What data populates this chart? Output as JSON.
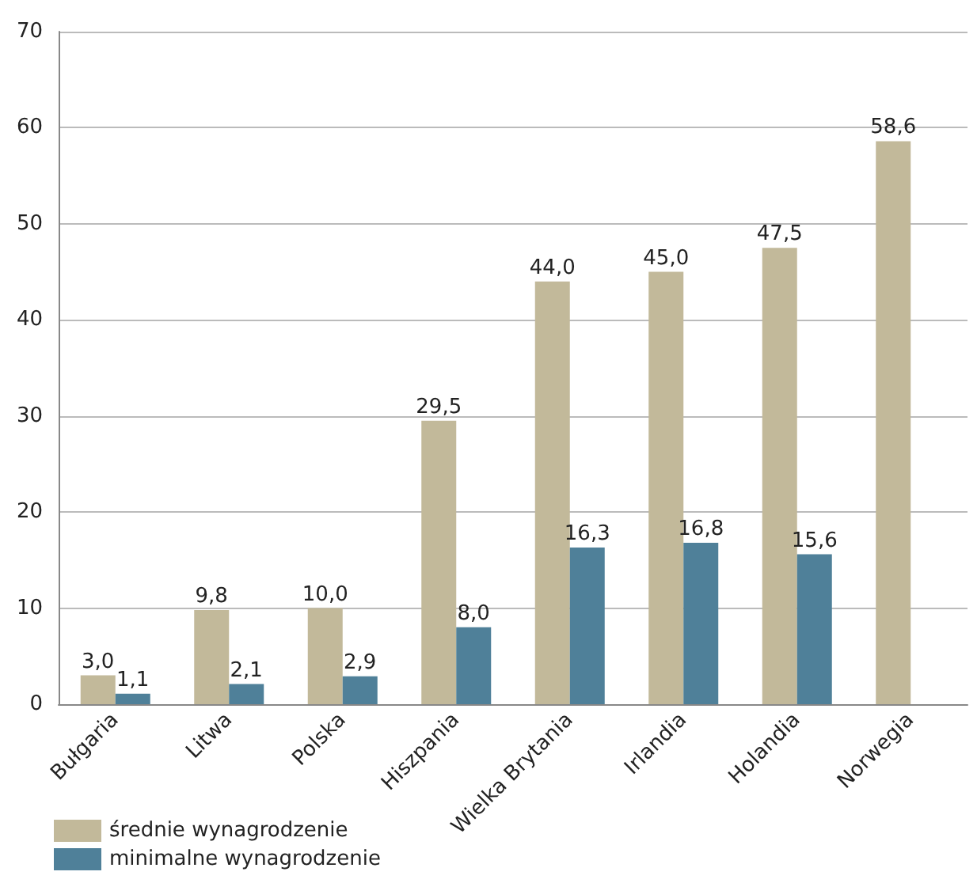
{
  "chart_data": {
    "type": "bar",
    "categories": [
      "Bułgaria",
      "Litwa",
      "Polska",
      "Hiszpania",
      "Wielka Brytania",
      "Irlandia",
      "Holandia",
      "Norwegia"
    ],
    "series": [
      {
        "name": "średnie wynagrodzenie",
        "color": "#c2b99a",
        "values": [
          3.0,
          9.8,
          10.0,
          29.5,
          44.0,
          45.0,
          47.5,
          58.6
        ],
        "value_labels": [
          "3,0",
          "9,8",
          "10,0",
          "29,5",
          "44,0",
          "45,0",
          "47,5",
          "58,6"
        ]
      },
      {
        "name": "minimalne wynagrodzenie",
        "color": "#4f8099",
        "values": [
          1.1,
          2.1,
          2.9,
          8.0,
          16.3,
          16.8,
          15.6,
          null
        ],
        "value_labels": [
          "1,1",
          "2,1",
          "2,9",
          "8,0",
          "16,3",
          "16,8",
          "15,6",
          null
        ]
      }
    ],
    "ylim": [
      0,
      70
    ],
    "yticks": [
      0,
      10,
      20,
      30,
      40,
      50,
      60,
      70
    ],
    "grid": "y",
    "legend": "bottom left"
  }
}
